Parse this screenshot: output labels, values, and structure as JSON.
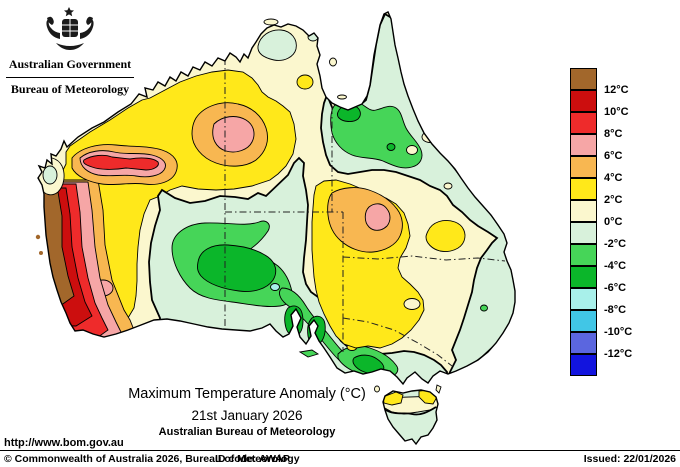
{
  "header": {
    "gov_label": "Australian Government",
    "bureau_label": "Bureau of Meteorology"
  },
  "titles": {
    "main": "Maximum Temperature Anomaly (°C)",
    "date": "21st January 2026",
    "org": "Australian Bureau of Meteorology"
  },
  "legend": {
    "swatch_keys": [
      "brown",
      "dark_red",
      "red",
      "pink",
      "orange",
      "yellow",
      "cream",
      "pale_green",
      "mid_green",
      "green",
      "pale_cyan",
      "cyan",
      "blue_violet",
      "blue"
    ],
    "boundary_labels": [
      "12°C",
      "10°C",
      "8°C",
      "6°C",
      "4°C",
      "2°C",
      "0°C",
      "-2°C",
      "-4°C",
      "-6°C",
      "-8°C",
      "-10°C",
      "-12°C"
    ]
  },
  "footer": {
    "url": "http://www.bom.gov.au",
    "copyright": "© Commonwealth of Australia 2026, Bureau of Meteorology",
    "id_code": "ID code: AWAP",
    "issued": "Issued: 22/01/2026"
  },
  "map": {
    "palette": {
      "brown": "#A2672B",
      "dark_red": "#CC0E0E",
      "red": "#EE2B2B",
      "pink": "#F6A6A6",
      "orange": "#F8B751",
      "yellow": "#FFE81A",
      "cream": "#FBF7CE",
      "pale_green": "#D8F1DB",
      "mid_green": "#46D558",
      "green": "#0BB62A",
      "pale_cyan": "#A8F0EA",
      "cyan": "#41C6E6",
      "blue_violet": "#5B66DF",
      "blue": "#1214DE"
    }
  }
}
